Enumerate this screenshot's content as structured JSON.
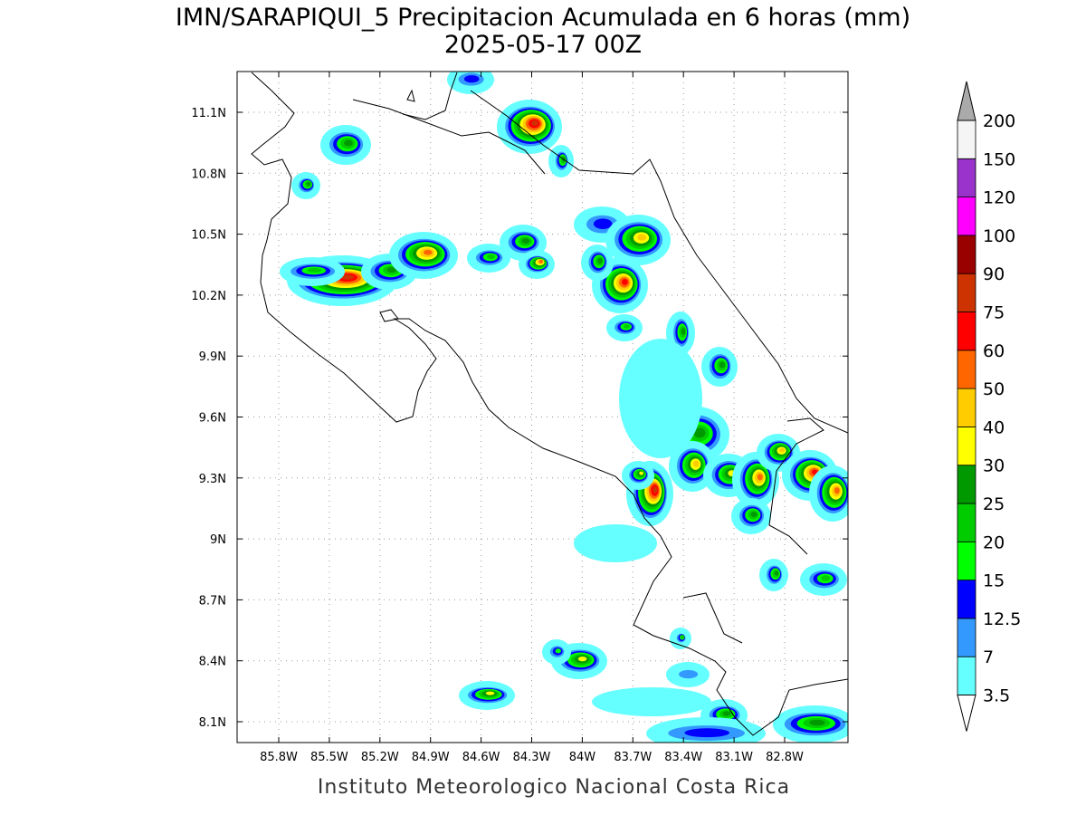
{
  "title": "IMN/SARAPIQUI_5 Precipitacion Acumulada en 6 horas (mm)",
  "subtitle": "2025-05-17 00Z",
  "map": {
    "lat_ticks": [
      "11.1N",
      "10.8N",
      "10.5N",
      "10.2N",
      "9.9N",
      "9.6N",
      "9.3N",
      "9N",
      "8.7N",
      "8.4N",
      "8.1N"
    ],
    "lon_ticks": [
      "85.8W",
      "85.5W",
      "85.2W",
      "84.9W",
      "84.6W",
      "84.3W",
      "84W",
      "83.7W",
      "83.4W",
      "83.1W",
      "82.8W"
    ],
    "grid": true
  },
  "colorbar": {
    "levels": [
      3.5,
      7,
      12.5,
      15,
      20,
      25,
      30,
      40,
      50,
      60,
      75,
      90,
      100,
      120,
      150,
      200
    ],
    "colors": [
      "#66ffff",
      "#3399ff",
      "#0000ff",
      "#00ff00",
      "#00cc00",
      "#009900",
      "#ffff00",
      "#ffcc00",
      "#ff6600",
      "#ff0000",
      "#cc3300",
      "#990000",
      "#ff00ff",
      "#9933cc",
      "#f5f5f5"
    ],
    "under_color": "#ffffff",
    "over_color": "#aaaaaa"
  },
  "footer": "Instituto Meteorologico Nacional Costa Rica"
}
